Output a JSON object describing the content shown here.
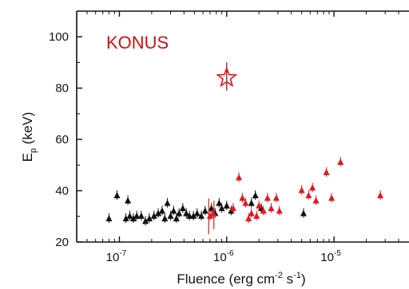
{
  "chart_data": {
    "type": "scatter",
    "title": "",
    "annotation": "KONUS",
    "xlabel_main": "Fluence (erg cm",
    "xlabel_exp1": "-2",
    "xlabel_mid": " s",
    "xlabel_exp2": "-1",
    "xlabel_end": ")",
    "ylabel_main": "E",
    "ylabel_sub": "p",
    "ylabel_end": " (keV)",
    "x_scale": "log",
    "xlim": [
      4e-08,
      5e-05
    ],
    "ylim": [
      20,
      110
    ],
    "y_ticks": [
      20,
      40,
      60,
      80,
      100
    ],
    "x_ticks": [
      {
        "value": 1e-07,
        "base": "10",
        "exp": "-7"
      },
      {
        "value": 1e-06,
        "base": "10",
        "exp": "-6"
      },
      {
        "value": 1e-05,
        "base": "10",
        "exp": "-5"
      }
    ],
    "colors": {
      "series_a": "#111111",
      "series_b": "#e8141b",
      "annotation": "#cc1111",
      "star": "#e8141b"
    },
    "series": [
      {
        "color": "black",
        "points": [
          [
            8e-08,
            29
          ],
          [
            9.5e-08,
            38
          ],
          [
            1.15e-07,
            29
          ],
          [
            1.2e-07,
            36
          ],
          [
            1.25e-07,
            30
          ],
          [
            1.35e-07,
            29
          ],
          [
            1.45e-07,
            30
          ],
          [
            1.6e-07,
            30
          ],
          [
            1.75e-07,
            28
          ],
          [
            1.9e-07,
            29
          ],
          [
            2.1e-07,
            30
          ],
          [
            2.3e-07,
            31
          ],
          [
            2.5e-07,
            32
          ],
          [
            2.65e-07,
            29
          ],
          [
            2.8e-07,
            35
          ],
          [
            3e-07,
            30
          ],
          [
            3.2e-07,
            32
          ],
          [
            3.4e-07,
            29
          ],
          [
            3.6e-07,
            31
          ],
          [
            3.9e-07,
            33
          ],
          [
            4.2e-07,
            31
          ],
          [
            4.5e-07,
            30
          ],
          [
            4.9e-07,
            30
          ],
          [
            5.3e-07,
            31
          ],
          [
            5.8e-07,
            30
          ],
          [
            6.3e-07,
            32
          ],
          [
            7.2e-07,
            33
          ],
          [
            7.8e-07,
            31
          ],
          [
            8.5e-07,
            35
          ],
          [
            9e-07,
            33
          ],
          [
            1e-06,
            34
          ],
          [
            1.1e-06,
            32
          ],
          [
            1.7e-06,
            35
          ],
          [
            1.85e-06,
            38
          ],
          [
            2.1e-06,
            33
          ],
          [
            5.2e-06,
            31
          ]
        ]
      },
      {
        "color": "red",
        "points": [
          [
            7e-07,
            30
          ],
          [
            7.5e-07,
            31
          ],
          [
            1.15e-06,
            33
          ],
          [
            1.3e-06,
            45
          ],
          [
            1.4e-06,
            37
          ],
          [
            1.5e-06,
            35
          ],
          [
            1.6e-06,
            29
          ],
          [
            1.7e-06,
            31
          ],
          [
            1.9e-06,
            30
          ],
          [
            2e-06,
            34
          ],
          [
            2.2e-06,
            32
          ],
          [
            2.4e-06,
            37
          ],
          [
            2.6e-06,
            33
          ],
          [
            2.9e-06,
            37
          ],
          [
            3.1e-06,
            32
          ],
          [
            5e-06,
            40
          ],
          [
            5.8e-06,
            38
          ],
          [
            6.3e-06,
            41
          ],
          [
            6.8e-06,
            36
          ],
          [
            8.5e-06,
            47
          ],
          [
            9.5e-06,
            37
          ],
          [
            1.15e-05,
            51
          ],
          [
            2.7e-05,
            38
          ]
        ]
      }
    ],
    "star": {
      "x": 1e-06,
      "y": 84,
      "y_err": [
        79,
        90
      ]
    }
  }
}
